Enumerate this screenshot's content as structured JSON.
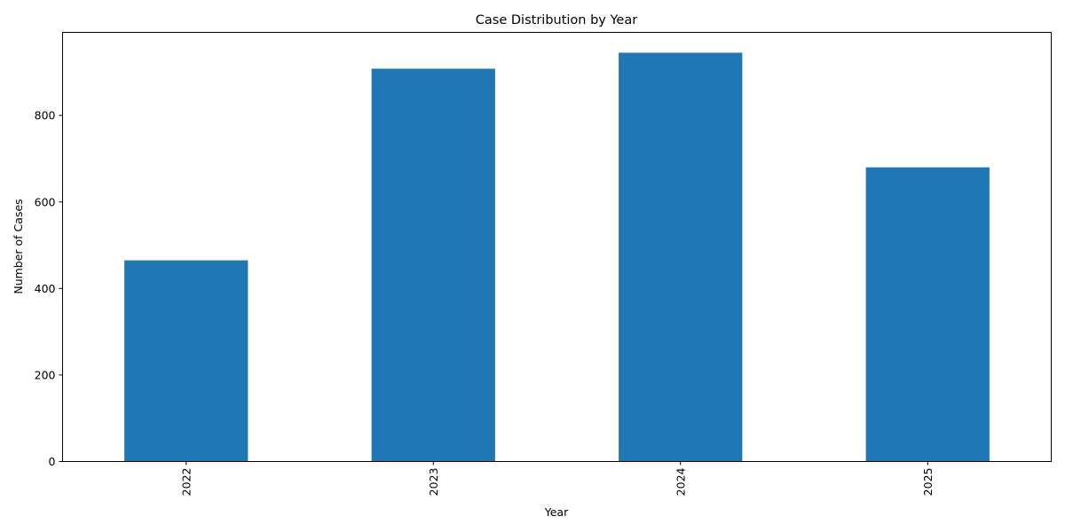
{
  "chart_data": {
    "type": "bar",
    "title": "Case Distribution by Year",
    "xlabel": "Year",
    "ylabel": "Number of Cases",
    "categories": [
      "2022",
      "2023",
      "2024",
      "2025"
    ],
    "values": [
      465,
      908,
      945,
      680
    ],
    "ylim": [
      0,
      992
    ],
    "yticks": [
      0,
      200,
      400,
      600,
      800
    ],
    "ytick_labels": [
      "0",
      "200",
      "400",
      "600",
      "800"
    ],
    "xtick_rotation": "vertical",
    "grid": false,
    "legend": "none",
    "bar_color": "#1f77b4"
  }
}
